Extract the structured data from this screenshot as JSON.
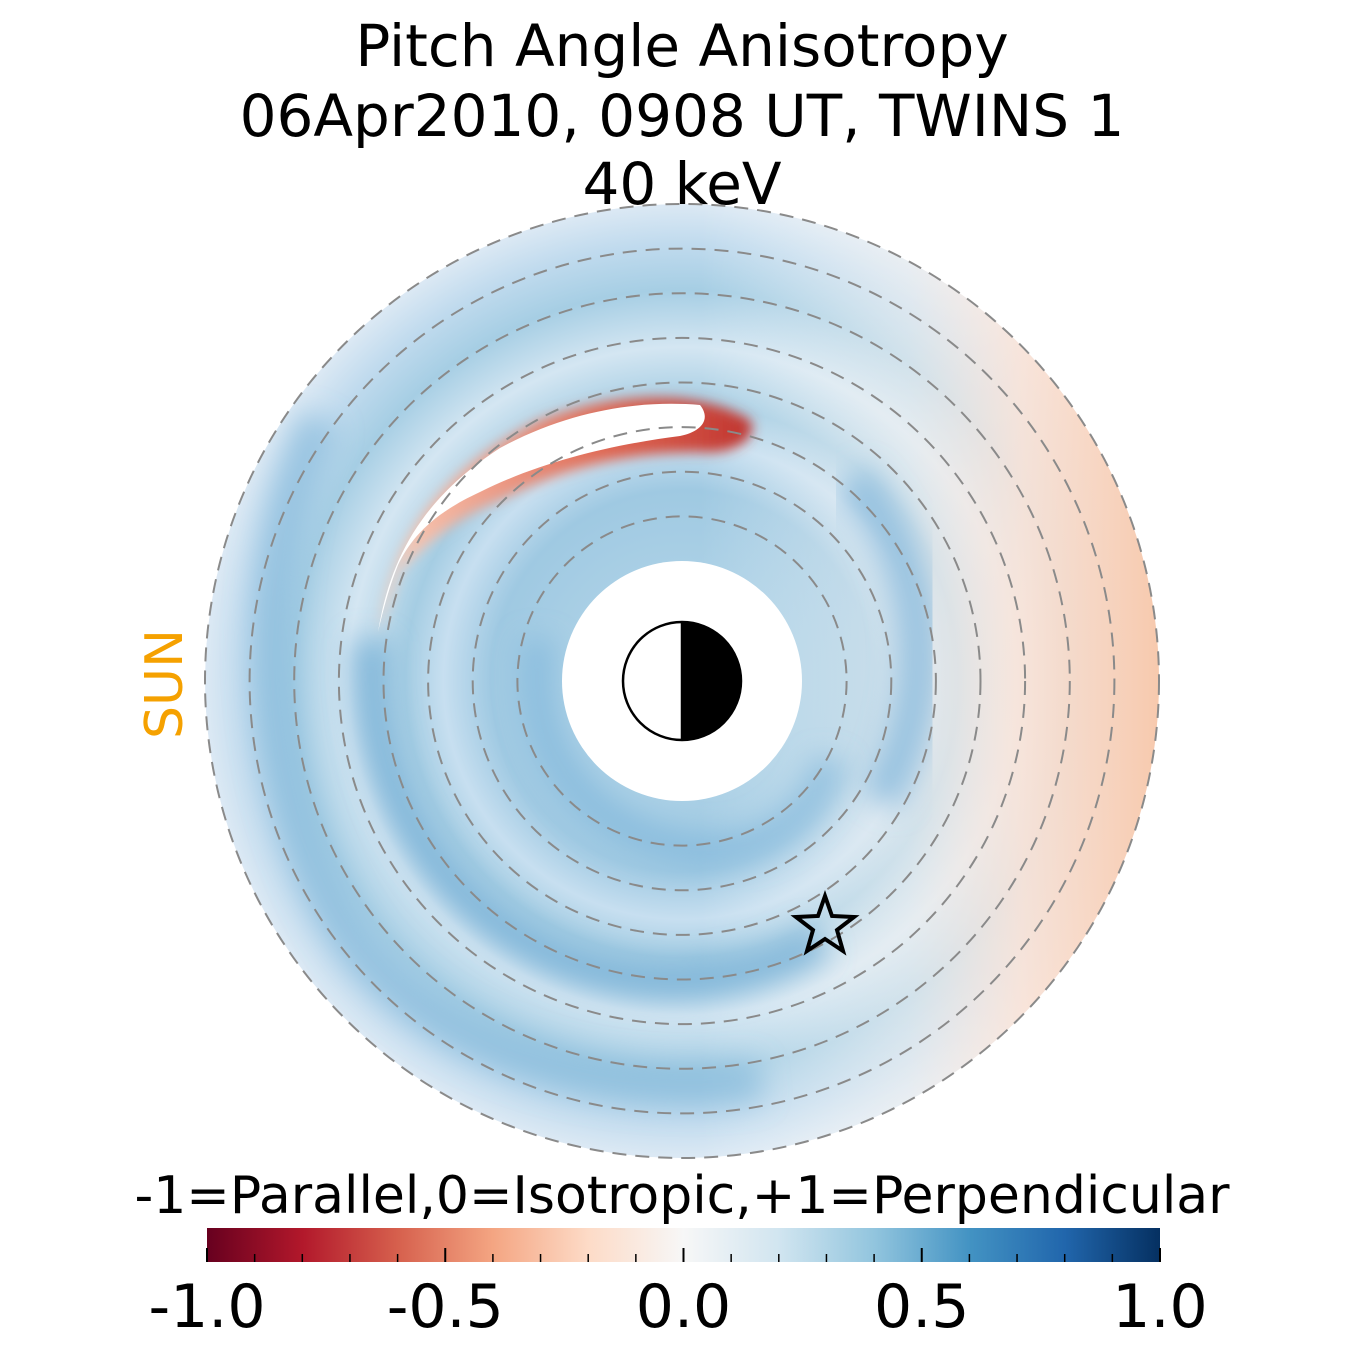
{
  "chart_data": {
    "type": "heatmap",
    "projection": "polar equatorial plane",
    "title": [
      "Pitch Angle Anisotropy",
      "06Apr2010, 0908 UT,  TWINS 1",
      "40 keV"
    ],
    "side_label": "SUN",
    "colorbar": {
      "label": "-1=Parallel,0=Isotropic,+1=Perpendicular",
      "range": [
        -1.0,
        1.0
      ],
      "ticks": [
        -1.0,
        -0.5,
        0.0,
        0.5,
        1.0
      ],
      "tick_labels": [
        "-1.0",
        "-0.5",
        "0.0",
        "0.5",
        "1.0"
      ],
      "colormap": "RdBu",
      "colors": [
        "#67001f",
        "#b2182b",
        "#d6604d",
        "#f4a582",
        "#fddbc7",
        "#f7f7f7",
        "#d1e5f0",
        "#92c5de",
        "#4393c3",
        "#2166ac",
        "#053061"
      ]
    },
    "ring_count": 8,
    "regions": [
      {
        "name": "outer-ring-dawn",
        "value": 0.4
      },
      {
        "name": "outer-ring-dusk",
        "value": -0.2
      },
      {
        "name": "mid-band-dusk",
        "value": 0.35
      },
      {
        "name": "inner-ring",
        "value": 0.3
      },
      {
        "name": "noon-sector-inner",
        "value": 0.45
      },
      {
        "name": "red-arc-anomaly",
        "value": -0.6
      }
    ],
    "markers": [
      {
        "name": "earth",
        "symbol": "half-shaded circle"
      },
      {
        "name": "spacecraft",
        "symbol": "star"
      }
    ]
  }
}
